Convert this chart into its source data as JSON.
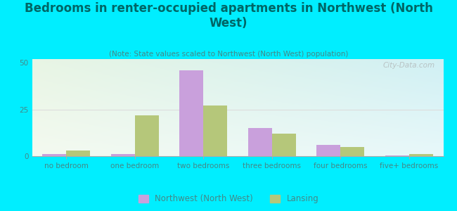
{
  "title": "Bedrooms in renter-occupied apartments in Northwest (North\nWest)",
  "subtitle": "(Note: State values scaled to Northwest (North West) population)",
  "categories": [
    "no bedroom",
    "one bedroom",
    "two bedrooms",
    "three bedrooms",
    "four bedrooms",
    "five+ bedrooms"
  ],
  "northwest_values": [
    1.0,
    1.2,
    46.0,
    15.0,
    6.0,
    0.3
  ],
  "lansing_values": [
    3.0,
    22.0,
    27.0,
    12.0,
    5.0,
    1.0
  ],
  "northwest_color": "#c9a0dc",
  "lansing_color": "#b5c77a",
  "bg_outer": "#00eeff",
  "ylabel_values": [
    0,
    25,
    50
  ],
  "ylim": [
    0,
    52
  ],
  "bar_width": 0.35,
  "title_fontsize": 12,
  "subtitle_fontsize": 7.5,
  "axis_label_fontsize": 7.5,
  "title_color": "#006666",
  "subtitle_color": "#448888",
  "tick_color": "#448888",
  "legend_label_northwest": "Northwest (North West)",
  "legend_label_lansing": "Lansing",
  "watermark": "City-Data.com",
  "watermark_color": "#aaaaaa"
}
